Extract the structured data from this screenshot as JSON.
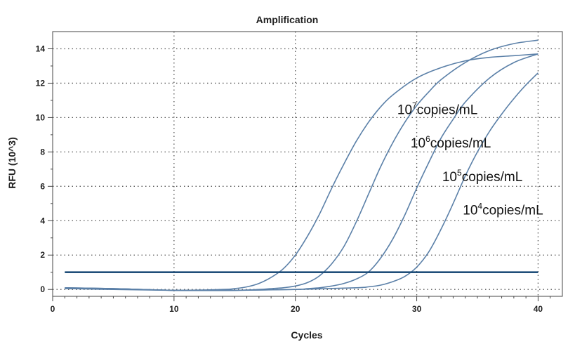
{
  "chart_data": {
    "type": "line",
    "title": "Amplification",
    "xlabel": "Cycles",
    "ylabel": "RFU (10^3)",
    "xlim": [
      0,
      42
    ],
    "ylim": [
      -0.4,
      15
    ],
    "xticks": [
      0,
      10,
      20,
      30,
      40
    ],
    "yticks": [
      0,
      2,
      4,
      6,
      8,
      10,
      12,
      14
    ],
    "grid": true,
    "line_color": "#5b80a8",
    "threshold_color": "#1f4e79",
    "threshold": {
      "y": 1.0,
      "x_start": 1,
      "x_end": 40
    },
    "series": [
      {
        "name": "10⁷copies/mL",
        "x": [
          1,
          5,
          10,
          14,
          15,
          16,
          17,
          18,
          19,
          20,
          21,
          22,
          23,
          24,
          25,
          26,
          27,
          28,
          30,
          32,
          34,
          36,
          38,
          40
        ],
        "values": [
          0.05,
          0.05,
          -0.05,
          0.0,
          0.05,
          0.15,
          0.35,
          0.7,
          1.2,
          2.0,
          3.1,
          4.4,
          5.9,
          7.3,
          8.6,
          9.7,
          10.6,
          11.3,
          12.3,
          12.9,
          13.3,
          13.5,
          13.6,
          13.7
        ]
      },
      {
        "name": "10⁶copies/mL",
        "x": [
          1,
          5,
          10,
          15,
          17,
          18,
          19,
          20,
          21,
          22,
          23,
          24,
          25,
          26,
          27,
          28,
          29,
          30,
          31,
          32,
          34,
          36,
          38,
          40
        ],
        "values": [
          0.1,
          0.05,
          -0.05,
          -0.05,
          0.0,
          0.05,
          0.1,
          0.2,
          0.4,
          0.8,
          1.5,
          2.5,
          3.9,
          5.5,
          7.1,
          8.5,
          9.7,
          10.7,
          11.5,
          12.2,
          13.2,
          13.9,
          14.3,
          14.5
        ]
      },
      {
        "name": "10⁵copies/mL",
        "x": [
          1,
          5,
          10,
          15,
          20,
          21,
          22,
          23,
          24,
          25,
          26,
          27,
          28,
          29,
          30,
          31,
          32,
          33,
          34,
          36,
          38,
          40
        ],
        "values": [
          0.1,
          0.05,
          -0.05,
          -0.05,
          0.0,
          0.05,
          0.1,
          0.2,
          0.35,
          0.6,
          1.0,
          1.8,
          2.9,
          4.3,
          5.9,
          7.4,
          8.8,
          9.9,
          10.9,
          12.3,
          13.2,
          13.7
        ]
      },
      {
        "name": "10⁴copies/mL",
        "x": [
          1,
          5,
          10,
          15,
          20,
          25,
          26,
          27,
          28,
          29,
          30,
          31,
          32,
          33,
          34,
          35,
          36,
          37,
          38,
          39,
          40
        ],
        "values": [
          0.05,
          0.0,
          -0.05,
          -0.05,
          0.0,
          0.1,
          0.15,
          0.25,
          0.45,
          0.75,
          1.3,
          2.2,
          3.5,
          5.0,
          6.6,
          8.0,
          9.2,
          10.2,
          11.1,
          11.9,
          12.6
        ]
      }
    ],
    "annotations": [
      {
        "base": "10",
        "exp": "7",
        "suffix": "copies/mL",
        "x": 28.4,
        "y": 10.2
      },
      {
        "base": "10",
        "exp": "6",
        "suffix": "copies/mL",
        "x": 29.5,
        "y": 8.25
      },
      {
        "base": "10",
        "exp": "5",
        "suffix": "copies/mL",
        "x": 32.1,
        "y": 6.3
      },
      {
        "base": "10",
        "exp": "4",
        "suffix": "copies/mL",
        "x": 33.8,
        "y": 4.35
      }
    ]
  }
}
